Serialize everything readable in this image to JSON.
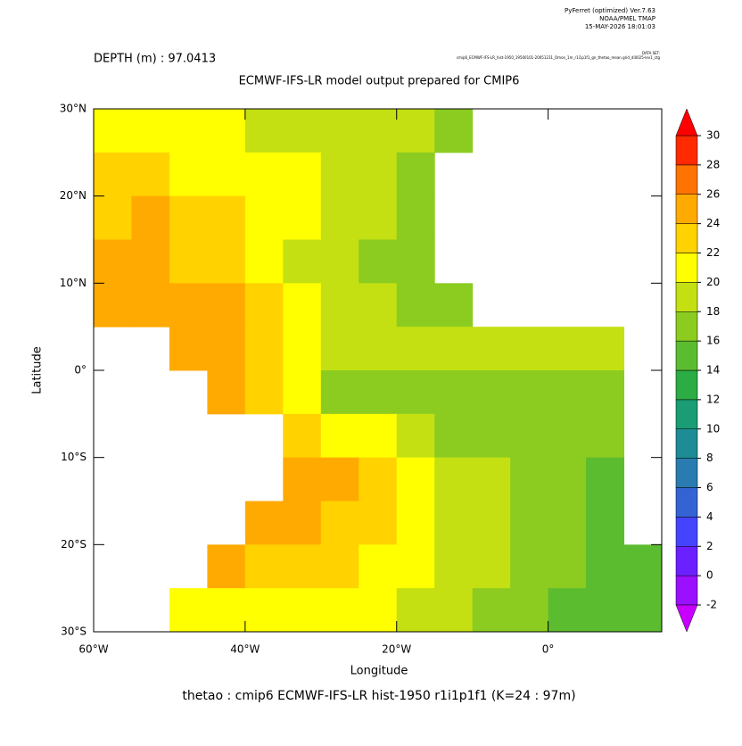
{
  "header": {
    "software": "PyFerret (optimized) Ver.7.63",
    "org": "NOAA/PMEL TMAP",
    "timestamp": "15-MAY-2026 18:01:03",
    "dataset_label": "DATA SET:",
    "dataset": "cmip6_ECMWF-IFS-LR_hist-1950_19500101-20051231_Omon_1m_r1i1p1f1_gn_thetao_mean.grid_di0025-lev1_ctg",
    "depth": "DEPTH (m) : 97.0413"
  },
  "chart_data": {
    "type": "heatmap",
    "title": "ECMWF-IFS-LR model output prepared for CMIP6",
    "x_label": "Longitude",
    "y_label": "Latitude",
    "caption": "thetao : cmip6 ECMWF-IFS-LR hist-1950 r1i1p1f1   (K=24 : 97m)",
    "x": [
      -57.5,
      -52.5,
      -47.5,
      -42.5,
      -37.5,
      -32.5,
      -27.5,
      -22.5,
      -17.5,
      -12.5,
      -7.5,
      -2.5,
      2.5,
      7.5,
      12.5
    ],
    "y": [
      27.5,
      22.5,
      17.5,
      12.5,
      7.5,
      2.5,
      -2.5,
      -7.5,
      -12.5,
      -17.5,
      -22.5,
      -27.5
    ],
    "z": [
      [
        20,
        20,
        20,
        20,
        19,
        19,
        19,
        18,
        18,
        17,
        null,
        null,
        null,
        null,
        null
      ],
      [
        22,
        22,
        21,
        21,
        20,
        20,
        19,
        18,
        17,
        null,
        null,
        null,
        null,
        null,
        null
      ],
      [
        23,
        24,
        23,
        22,
        21,
        20,
        19,
        18,
        17,
        null,
        null,
        null,
        null,
        null,
        null
      ],
      [
        24,
        24,
        23,
        22,
        21,
        19,
        18,
        17,
        16,
        null,
        null,
        null,
        null,
        null,
        null
      ],
      [
        25,
        25,
        25,
        24,
        22,
        20,
        19,
        18,
        17,
        17,
        null,
        null,
        null,
        null,
        null
      ],
      [
        null,
        null,
        25,
        24,
        23,
        20,
        19,
        18,
        18,
        18,
        18,
        18,
        18,
        18,
        null
      ],
      [
        null,
        null,
        null,
        24,
        22,
        20,
        17,
        17,
        17,
        17,
        17,
        17,
        17,
        17,
        null
      ],
      [
        null,
        null,
        null,
        null,
        null,
        23,
        21,
        20,
        18,
        17,
        17,
        16,
        16,
        16,
        null
      ],
      [
        null,
        null,
        null,
        null,
        null,
        24,
        24,
        22,
        20,
        19,
        18,
        17,
        16,
        15,
        null
      ],
      [
        null,
        null,
        null,
        null,
        24,
        24,
        23,
        22,
        20,
        19,
        18,
        17,
        16,
        15,
        null
      ],
      [
        null,
        null,
        null,
        24,
        23,
        23,
        22,
        21,
        20,
        19,
        18,
        17,
        16,
        15,
        14
      ],
      [
        null,
        null,
        20,
        21,
        21,
        21,
        21,
        20,
        19,
        18,
        17,
        16,
        15,
        15,
        14
      ]
    ],
    "xlim": [
      -60,
      15
    ],
    "ylim": [
      -30,
      30
    ],
    "xticks": [
      {
        "value": -60,
        "label": "60°W"
      },
      {
        "value": -40,
        "label": "40°W"
      },
      {
        "value": -20,
        "label": "20°W"
      },
      {
        "value": 0,
        "label": "0°"
      }
    ],
    "yticks": [
      {
        "value": 30,
        "label": "30°N"
      },
      {
        "value": 20,
        "label": "20°N"
      },
      {
        "value": 10,
        "label": "10°N"
      },
      {
        "value": 0,
        "label": "0°"
      },
      {
        "value": -10,
        "label": "10°S"
      },
      {
        "value": -20,
        "label": "20°S"
      },
      {
        "value": -30,
        "label": "30°S"
      }
    ],
    "levels": [
      -2,
      0,
      2,
      4,
      6,
      8,
      10,
      12,
      14,
      16,
      18,
      20,
      22,
      24,
      26,
      28,
      30
    ],
    "colors": [
      "#9a10ff",
      "#6a20ff",
      "#4444ff",
      "#3464d4",
      "#2a7cb0",
      "#1e8c94",
      "#1a9c74",
      "#2cac44",
      "#5cbc30",
      "#8ccc20",
      "#c4e012",
      "#ffff00",
      "#ffd200",
      "#ffaa00",
      "#ff7400",
      "#ff2a00"
    ],
    "under_color": "#c800ff",
    "over_color": "#ff0000"
  }
}
